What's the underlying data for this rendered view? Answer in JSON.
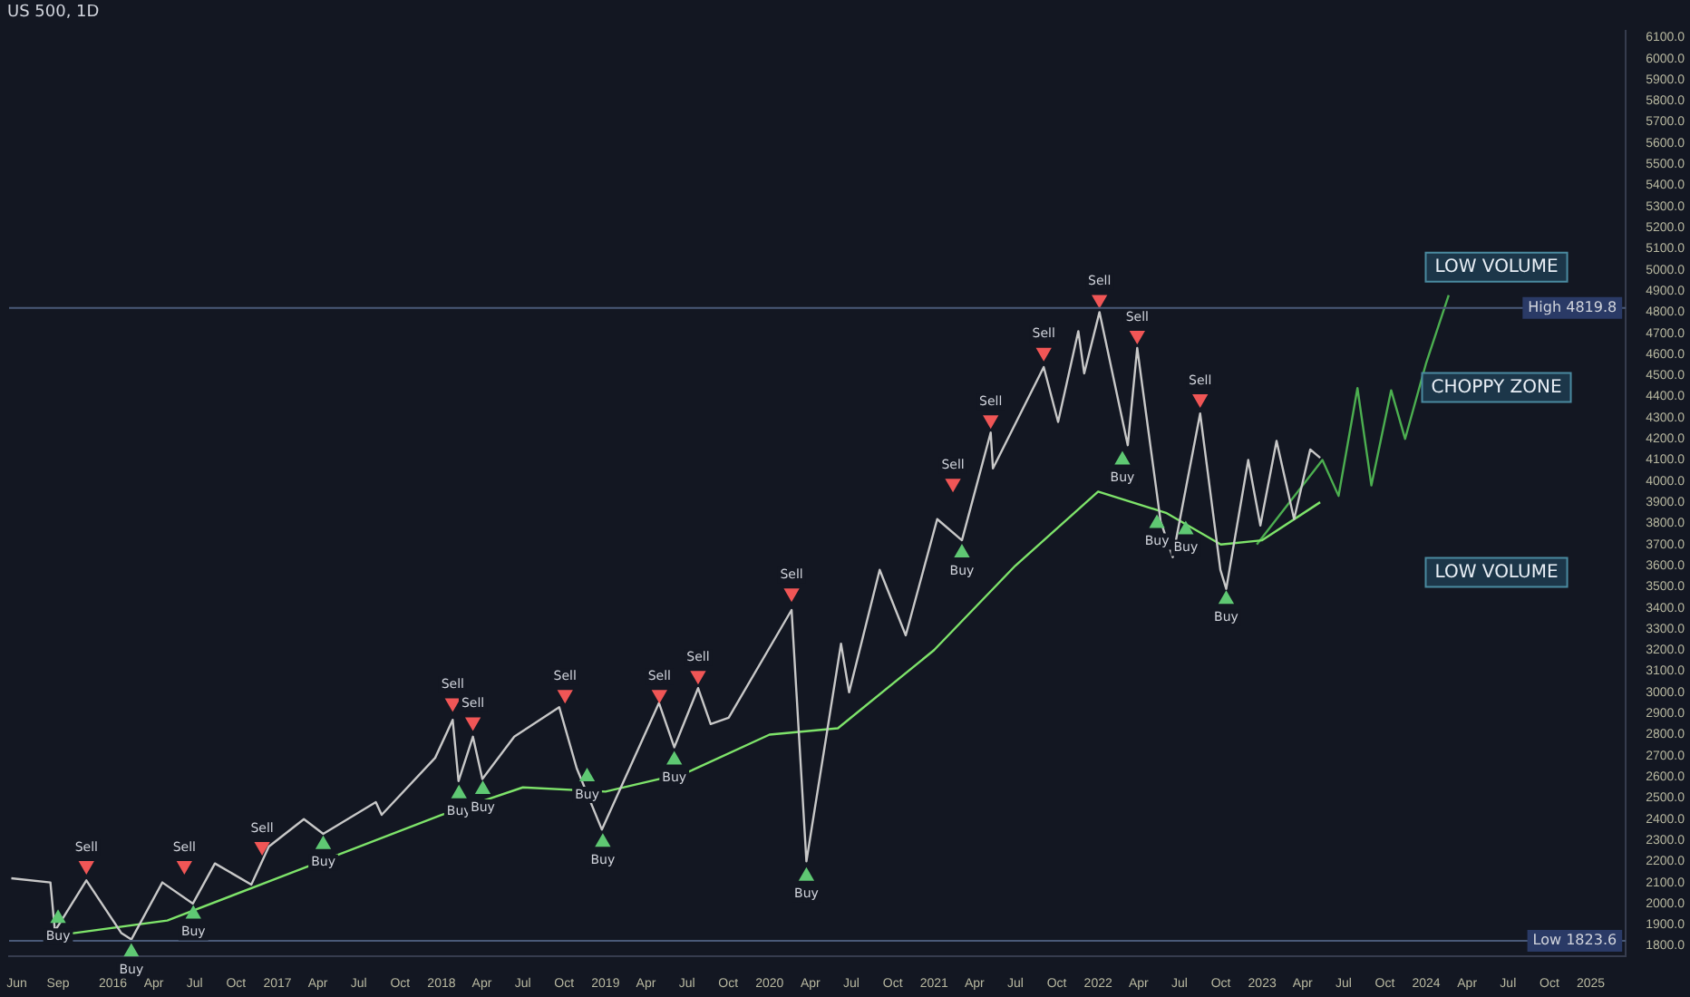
{
  "chart_data": {
    "type": "line",
    "title": "US 500, 1D",
    "series": [
      {
        "color": "#c8c8c8",
        "x": [
          "2015-05-20",
          "2015-08-15",
          "2015-08-25",
          "2015-11-03",
          "2016-01-20",
          "2016-02-11",
          "2016-04-20",
          "2016-06-27",
          "2016-08-15",
          "2016-11-04",
          "2016-12-13",
          "2017-03-01",
          "2017-04-13",
          "2017-08-08",
          "2017-08-21",
          "2017-12-18",
          "2018-01-26",
          "2018-02-08",
          "2018-03-12",
          "2018-04-02",
          "2018-06-12",
          "2018-09-20",
          "2018-10-29",
          "2018-12-24",
          "2019-04-30",
          "2019-06-03",
          "2019-07-26",
          "2019-08-23",
          "2019-10-02",
          "2020-02-19",
          "2020-03-23",
          "2020-06-08",
          "2020-06-26",
          "2020-09-02",
          "2020-10-30",
          "2021-01-08",
          "2021-03-04",
          "2021-05-07",
          "2021-05-12",
          "2021-09-02",
          "2021-10-04",
          "2021-11-18",
          "2021-12-01",
          "2022-01-04",
          "2022-03-08",
          "2022-03-29",
          "2022-05-20",
          "2022-06-16",
          "2022-08-16",
          "2022-09-30",
          "2022-10-13",
          "2022-12-01",
          "2022-12-28",
          "2023-02-02",
          "2023-03-13",
          "2023-04-18",
          "2023-05-10"
        ],
        "values": [
          2120,
          2100,
          1870,
          2110,
          1860,
          1830,
          2100,
          2000,
          2190,
          2090,
          2270,
          2400,
          2330,
          2480,
          2420,
          2690,
          2870,
          2580,
          2790,
          2590,
          2790,
          2930,
          2640,
          2350,
          2950,
          2740,
          3020,
          2850,
          2880,
          3390,
          2200,
          3230,
          3000,
          3580,
          3270,
          3820,
          3720,
          4230,
          4060,
          4540,
          4280,
          4710,
          4510,
          4800,
          4170,
          4630,
          3810,
          3640,
          4320,
          3580,
          3490,
          4100,
          3790,
          4190,
          3820,
          4150,
          4110
        ]
      },
      {
        "color": "#7ee36a",
        "x": [
          "2015-09-01",
          "2016-05-01",
          "2017-01-01",
          "2018-01-01",
          "2018-07-01",
          "2019-01-01",
          "2019-07-01",
          "2020-01-01",
          "2020-06-01",
          "2021-01-01",
          "2021-07-01",
          "2022-01-01",
          "2022-06-01",
          "2022-10-01",
          "2023-01-01",
          "2023-05-10"
        ],
        "values": [
          1850,
          1920,
          2120,
          2420,
          2550,
          2530,
          2620,
          2800,
          2830,
          3200,
          3600,
          3950,
          3850,
          3700,
          3720,
          3900
        ]
      },
      {
        "color": "#4caf50",
        "x": [
          "2022-12-20",
          "2023-05-15",
          "2023-06-20",
          "2023-08-01",
          "2023-09-01",
          "2023-10-15",
          "2023-11-15",
          "2024-01-01",
          "2024-02-20"
        ],
        "values": [
          3700,
          4100,
          3930,
          4440,
          3980,
          4430,
          4200,
          4560,
          4880
        ]
      },
      {
        "name": "Sell",
        "type": "scatter",
        "marker": "triangle",
        "color": "#f05656",
        "x": [
          "2015-11-03",
          "2016-06-08",
          "2016-11-28",
          "2018-01-26",
          "2018-03-12",
          "2018-10-03",
          "2019-05-01",
          "2019-07-26",
          "2020-02-19",
          "2021-02-12",
          "2021-05-07",
          "2021-09-02",
          "2022-01-04",
          "2022-03-29",
          "2022-08-16"
        ],
        "values": [
          2180,
          2180,
          2270,
          2950,
          2860,
          2990,
          2990,
          3080,
          3470,
          3990,
          4290,
          4610,
          4860,
          4690,
          4390
        ]
      },
      {
        "name": "Buy",
        "type": "scatter",
        "marker": "triangle",
        "color": "#5fc873",
        "x": [
          "2015-09-01",
          "2016-02-11",
          "2016-06-28",
          "2017-04-13",
          "2018-02-09",
          "2018-04-03",
          "2018-11-21",
          "2018-12-26",
          "2019-06-03",
          "2020-03-23",
          "2021-03-04",
          "2022-02-24",
          "2022-05-12",
          "2022-07-15",
          "2022-10-13"
        ],
        "values": [
          1930,
          1770,
          1950,
          2280,
          2520,
          2540,
          2600,
          2290,
          2680,
          2130,
          3660,
          4100,
          3800,
          3770,
          3440
        ]
      }
    ],
    "xlim": [
      "2015-05-15",
      "2025-03-20"
    ],
    "xticks": [
      {
        "value": "2015-06-01",
        "label": "Jun"
      },
      {
        "value": "2015-09-01",
        "label": "Sep"
      },
      {
        "value": "2016-01-01",
        "label": "2016"
      },
      {
        "value": "2016-04-01",
        "label": "Apr"
      },
      {
        "value": "2016-07-01",
        "label": "Jul"
      },
      {
        "value": "2016-10-01",
        "label": "Oct"
      },
      {
        "value": "2017-01-01",
        "label": "2017"
      },
      {
        "value": "2017-04-01",
        "label": "Apr"
      },
      {
        "value": "2017-07-01",
        "label": "Jul"
      },
      {
        "value": "2017-10-01",
        "label": "Oct"
      },
      {
        "value": "2018-01-01",
        "label": "2018"
      },
      {
        "value": "2018-04-01",
        "label": "Apr"
      },
      {
        "value": "2018-07-01",
        "label": "Jul"
      },
      {
        "value": "2018-10-01",
        "label": "Oct"
      },
      {
        "value": "2019-01-01",
        "label": "2019"
      },
      {
        "value": "2019-04-01",
        "label": "Apr"
      },
      {
        "value": "2019-07-01",
        "label": "Jul"
      },
      {
        "value": "2019-10-01",
        "label": "Oct"
      },
      {
        "value": "2020-01-01",
        "label": "2020"
      },
      {
        "value": "2020-04-01",
        "label": "Apr"
      },
      {
        "value": "2020-07-01",
        "label": "Jul"
      },
      {
        "value": "2020-10-01",
        "label": "Oct"
      },
      {
        "value": "2021-01-01",
        "label": "2021"
      },
      {
        "value": "2021-04-01",
        "label": "Apr"
      },
      {
        "value": "2021-07-01",
        "label": "Jul"
      },
      {
        "value": "2021-10-01",
        "label": "Oct"
      },
      {
        "value": "2022-01-01",
        "label": "2022"
      },
      {
        "value": "2022-04-01",
        "label": "Apr"
      },
      {
        "value": "2022-07-01",
        "label": "Jul"
      },
      {
        "value": "2022-10-01",
        "label": "Oct"
      },
      {
        "value": "2023-01-01",
        "label": "2023"
      },
      {
        "value": "2023-04-01",
        "label": "Apr"
      },
      {
        "value": "2023-07-01",
        "label": "Jul"
      },
      {
        "value": "2023-10-01",
        "label": "Oct"
      },
      {
        "value": "2024-01-01",
        "label": "2024"
      },
      {
        "value": "2024-04-01",
        "label": "Apr"
      },
      {
        "value": "2024-07-01",
        "label": "Jul"
      },
      {
        "value": "2024-10-01",
        "label": "Oct"
      },
      {
        "value": "2025-01-01",
        "label": "2025"
      }
    ],
    "ylim": [
      1750,
      6130
    ],
    "yticks": [
      {
        "value": 1800,
        "label": "1800.0"
      },
      {
        "value": 1900,
        "label": "1900.0"
      },
      {
        "value": 2000,
        "label": "2000.0"
      },
      {
        "value": 2100,
        "label": "2100.0"
      },
      {
        "value": 2200,
        "label": "2200.0"
      },
      {
        "value": 2300,
        "label": "2300.0"
      },
      {
        "value": 2400,
        "label": "2400.0"
      },
      {
        "value": 2500,
        "label": "2500.0"
      },
      {
        "value": 2600,
        "label": "2600.0"
      },
      {
        "value": 2700,
        "label": "2700.0"
      },
      {
        "value": 2800,
        "label": "2800.0"
      },
      {
        "value": 2900,
        "label": "2900.0"
      },
      {
        "value": 3000,
        "label": "3000.0"
      },
      {
        "value": 3100,
        "label": "3100.0"
      },
      {
        "value": 3200,
        "label": "3200.0"
      },
      {
        "value": 3300,
        "label": "3300.0"
      },
      {
        "value": 3400,
        "label": "3400.0"
      },
      {
        "value": 3500,
        "label": "3500.0"
      },
      {
        "value": 3600,
        "label": "3600.0"
      },
      {
        "value": 3700,
        "label": "3700.0"
      },
      {
        "value": 3800,
        "label": "3800.0"
      },
      {
        "value": 3900,
        "label": "3900.0"
      },
      {
        "value": 4000,
        "label": "4000.0"
      },
      {
        "value": 4100,
        "label": "4100.0"
      },
      {
        "value": 4200,
        "label": "4200.0"
      },
      {
        "value": 4300,
        "label": "4300.0"
      },
      {
        "value": 4400,
        "label": "4400.0"
      },
      {
        "value": 4500,
        "label": "4500.0"
      },
      {
        "value": 4600,
        "label": "4600.0"
      },
      {
        "value": 4700,
        "label": "4700.0"
      },
      {
        "value": 4800,
        "label": "4800.0"
      },
      {
        "value": 4900,
        "label": "4900.0"
      },
      {
        "value": 5000,
        "label": "5000.0"
      },
      {
        "value": 5100,
        "label": "5100.0"
      },
      {
        "value": 5200,
        "label": "5200.0"
      },
      {
        "value": 5300,
        "label": "5300.0"
      },
      {
        "value": 5400,
        "label": "5400.0"
      },
      {
        "value": 5500,
        "label": "5500.0"
      },
      {
        "value": 5600,
        "label": "5600.0"
      },
      {
        "value": 5700,
        "label": "5700.0"
      },
      {
        "value": 5800,
        "label": "5800.0"
      },
      {
        "value": 5900,
        "label": "5900.0"
      },
      {
        "value": 6000,
        "label": "6000.0"
      },
      {
        "value": 6100,
        "label": "6100.0"
      }
    ],
    "ref_lines": [
      {
        "axis": "y",
        "value": 4819.8,
        "label": "High 4819.8",
        "color": "#4a5a78"
      },
      {
        "axis": "y",
        "value": 1823.6,
        "label": "Low 1823.6",
        "color": "#4a5a78"
      }
    ],
    "annotations": [
      "LOW VOLUME",
      "CHOPPY ZONE",
      "LOW VOLUME"
    ],
    "grid": false,
    "legend": false
  }
}
